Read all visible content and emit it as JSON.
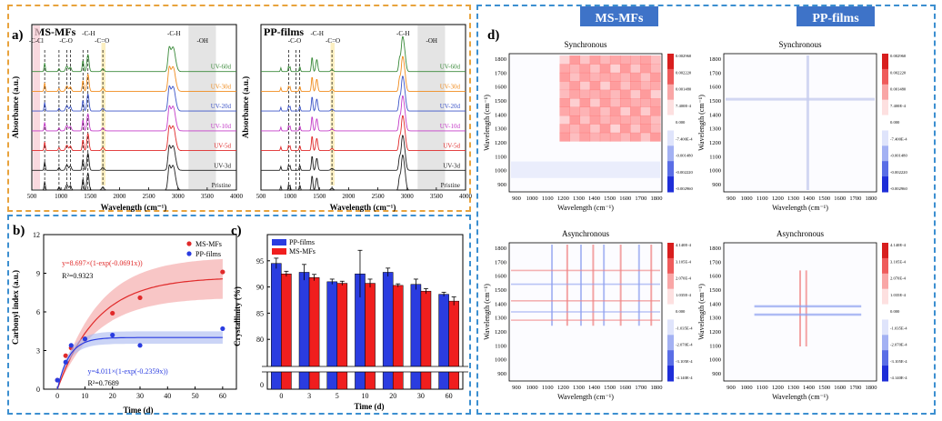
{
  "panel_a": {
    "label": "a)",
    "border_color": "#e8a33d",
    "ms": {
      "title": "MS-MFs",
      "ylabel": "Absorbance (a.u.)",
      "xlabel": "Wavelength (cm⁻¹)",
      "xticks": [
        "500",
        "1000",
        "1500",
        "2000",
        "2500",
        "3000",
        "3500",
        "4000"
      ],
      "bands": [
        "-C-Cl",
        "-C-O",
        "-C-H",
        "-C=O",
        "-C-H",
        "-OH"
      ]
    },
    "pp": {
      "title": "PP-films",
      "ylabel": "Absorbance (a.u.)",
      "xlabel": "Wavelength (cm⁻¹)",
      "xticks": [
        "500",
        "1000",
        "1500",
        "2000",
        "2500",
        "3000",
        "3500",
        "4000"
      ],
      "bands": [
        "-C-O",
        "-C-H",
        "-C=O",
        "-C-H",
        "-OH"
      ]
    },
    "series_labels": [
      "UV-60d",
      "UV-30d",
      "UV-20d",
      "UV-10d",
      "UV-5d",
      "UV-3d",
      "Pristine"
    ],
    "series_colors": [
      "#3a8a3a",
      "#f08c1e",
      "#3d55c8",
      "#c43cc8",
      "#e02a2a",
      "#222222",
      "#222222"
    ]
  },
  "chart_data": [
    {
      "id": "b",
      "type": "scatter",
      "label": "b)",
      "title": "",
      "xlabel": "Time (d)",
      "ylabel": "Carbonyl index (a.u.)",
      "xlim": [
        -5,
        65
      ],
      "ylim": [
        0,
        12
      ],
      "xticks": [
        "0",
        "10",
        "20",
        "30",
        "40",
        "50",
        "60"
      ],
      "yticks": [
        "0",
        "3",
        "6",
        "9",
        "12"
      ],
      "legend": "top-right",
      "series": [
        {
          "name": "MS-MFs",
          "color": "#e02a2a",
          "x": [
            0,
            3,
            5,
            10,
            20,
            30,
            60
          ],
          "y": [
            0.7,
            2.6,
            3.2,
            3.9,
            5.9,
            7.1,
            9.1
          ],
          "fit_a": 8.697,
          "fit_k": 0.0691,
          "equation": "y=8.697×(1-exp(-0.0691x))",
          "r2": "R²=0.9323"
        },
        {
          "name": "PP-films",
          "color": "#2a3ce0",
          "x": [
            0,
            3,
            5,
            10,
            20,
            30,
            60
          ],
          "y": [
            0.7,
            2.1,
            3.4,
            3.9,
            4.2,
            3.4,
            4.7
          ],
          "fit_a": 4.011,
          "fit_k": 0.2359,
          "equation": "y=4.011×(1-exp(-0.2359x))",
          "r2": "R²=0.7689"
        }
      ]
    },
    {
      "id": "c",
      "type": "bar",
      "label": "c)",
      "title": "",
      "xlabel": "Time (d)",
      "ylabel": "Crystallinity (%)",
      "categories": [
        "0",
        "3",
        "5",
        "10",
        "20",
        "30",
        "60"
      ],
      "ylim": [
        75,
        100
      ],
      "yticks": [
        "80",
        "85",
        "90",
        "95"
      ],
      "y_break_label": "0",
      "legend": "top-left",
      "series": [
        {
          "name": "PP-films",
          "color": "#2a3ce0",
          "values": [
            94.5,
            92.8,
            91.0,
            92.5,
            92.8,
            90.5,
            88.6
          ],
          "errors": [
            1.0,
            1.5,
            0.5,
            4.5,
            0.8,
            1.0,
            0.4
          ]
        },
        {
          "name": "MS-MFs",
          "color": "#f01e1e",
          "values": [
            92.5,
            91.8,
            90.7,
            90.7,
            90.3,
            89.2,
            87.3
          ],
          "errors": [
            0.5,
            0.6,
            0.4,
            0.8,
            0.3,
            0.5,
            0.8
          ]
        }
      ]
    }
  ],
  "panel_d": {
    "label": "d)",
    "border_color": "#3c8fd0",
    "headers": [
      "MS-MFs",
      "PP-films"
    ],
    "header_color": "#3e73c8",
    "maps": [
      {
        "name": "ms-sync",
        "title": "Synchronous",
        "colorbar": [
          "0.002960",
          "0.002220",
          "0.001480",
          "7.400E-4",
          "0.000",
          "-7.400E-4",
          "-0.001480",
          "-0.002220",
          "-0.002960"
        ]
      },
      {
        "name": "pp-sync",
        "title": "Synchronous",
        "colorbar": [
          "0.002960",
          "0.002220",
          "0.001480",
          "7.400E-4",
          "0.000",
          "-7.400E-4",
          "-0.001480",
          "-0.002220",
          "-0.002960"
        ]
      },
      {
        "name": "ms-async",
        "title": "Asynchronous",
        "colorbar": [
          "4.140E-4",
          "3.105E-4",
          "2.070E-4",
          "1.035E-4",
          "0.000",
          "-1.035E-4",
          "-2.070E-4",
          "-3.105E-4",
          "-4.140E-4"
        ]
      },
      {
        "name": "pp-async",
        "title": "Asynchronous",
        "colorbar": [
          "4.140E-4",
          "3.105E-4",
          "2.070E-4",
          "1.035E-4",
          "0.000",
          "-1.035E-4",
          "-2.070E-4",
          "-3.105E-4",
          "-4.140E-4"
        ]
      }
    ],
    "xlabel": "Wavelength (cm⁻¹)",
    "ylabel": "Wavelength (cm⁻¹)",
    "ticks": [
      "900",
      "1000",
      "1100",
      "1200",
      "1300",
      "1400",
      "1500",
      "1600",
      "1700",
      "1800"
    ]
  }
}
